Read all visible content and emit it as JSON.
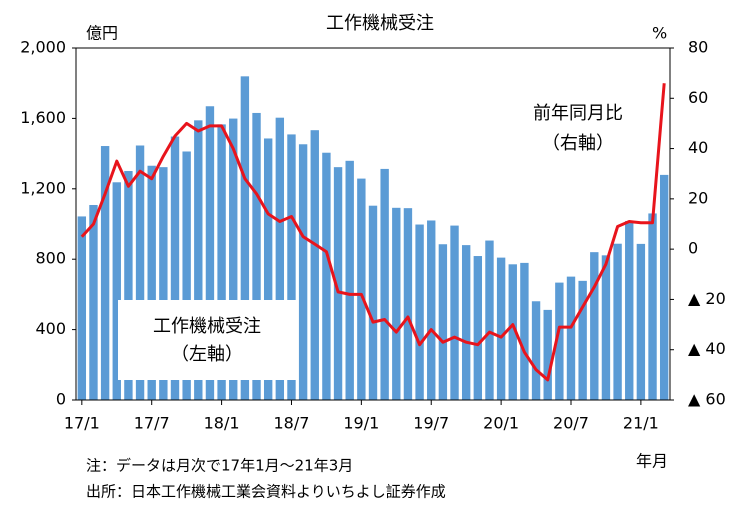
{
  "chart_data": {
    "type": "bar_line",
    "title": "工作機械受注",
    "y_unit": "億円",
    "y2_unit": "%",
    "x_unit": "年月",
    "notes": [
      "注：データは月次で17年1月～21年3月",
      "出所：日本工作機械工業会資料よりいちよし証券作成"
    ],
    "categories": [
      "17/1",
      null,
      null,
      null,
      null,
      null,
      "17/7",
      null,
      null,
      null,
      null,
      null,
      "18/1",
      null,
      null,
      null,
      null,
      null,
      "18/7",
      null,
      null,
      null,
      null,
      null,
      "19/1",
      null,
      null,
      null,
      null,
      null,
      "19/7",
      null,
      null,
      null,
      null,
      null,
      "20/1",
      null,
      null,
      null,
      null,
      null,
      "20/7",
      null,
      null,
      null,
      null,
      null,
      "21/1",
      null,
      null
    ],
    "series": [
      {
        "name": "工作機械受注",
        "axis_note": "（左軸）",
        "kind": "bar",
        "color": "#5b9bd5",
        "values": [
          1043,
          1108,
          1443,
          1237,
          1301,
          1446,
          1331,
          1323,
          1497,
          1412,
          1589,
          1669,
          1566,
          1599,
          1839,
          1631,
          1486,
          1604,
          1509,
          1453,
          1533,
          1405,
          1323,
          1359,
          1258,
          1104,
          1313,
          1092,
          1090,
          997,
          1020,
          885,
          991,
          880,
          818,
          906,
          809,
          771,
          779,
          561,
          512,
          667,
          701,
          677,
          840,
          822,
          888,
          1017,
          887,
          1060,
          1279
        ]
      },
      {
        "name": "前年同月比",
        "axis_note": "（右軸）",
        "kind": "line",
        "axis": "y2",
        "color": "#e8141c",
        "values": [
          4.9,
          10,
          22,
          35,
          25,
          31,
          28,
          37,
          45,
          50,
          47,
          49,
          49,
          40,
          28,
          22,
          14,
          11,
          13,
          5,
          2,
          -1,
          -17,
          -18,
          -18,
          -29,
          -28,
          -33,
          -27,
          -38,
          -32,
          -37,
          -35,
          -37,
          -38,
          -33,
          -35,
          -30,
          -41,
          -48,
          -52,
          -31,
          -31,
          -23,
          -15,
          -6,
          9,
          11,
          10.5,
          10.5,
          66
        ]
      }
    ],
    "ylim": [
      0,
      2000
    ],
    "yticks": [
      0,
      400,
      800,
      {
        "value": 1200,
        "label": "1,200"
      },
      {
        "value": 1600,
        "label": "1,600"
      },
      {
        "value": 2000,
        "label": "2,000"
      }
    ],
    "y2lim": [
      -60,
      80
    ],
    "y2ticks": [
      {
        "value": -60,
        "label": "▲ 60"
      },
      {
        "value": -40,
        "label": "▲ 40"
      },
      {
        "value": -20,
        "label": "▲ 20"
      },
      0,
      20,
      40,
      60,
      80
    ],
    "grid": false
  }
}
